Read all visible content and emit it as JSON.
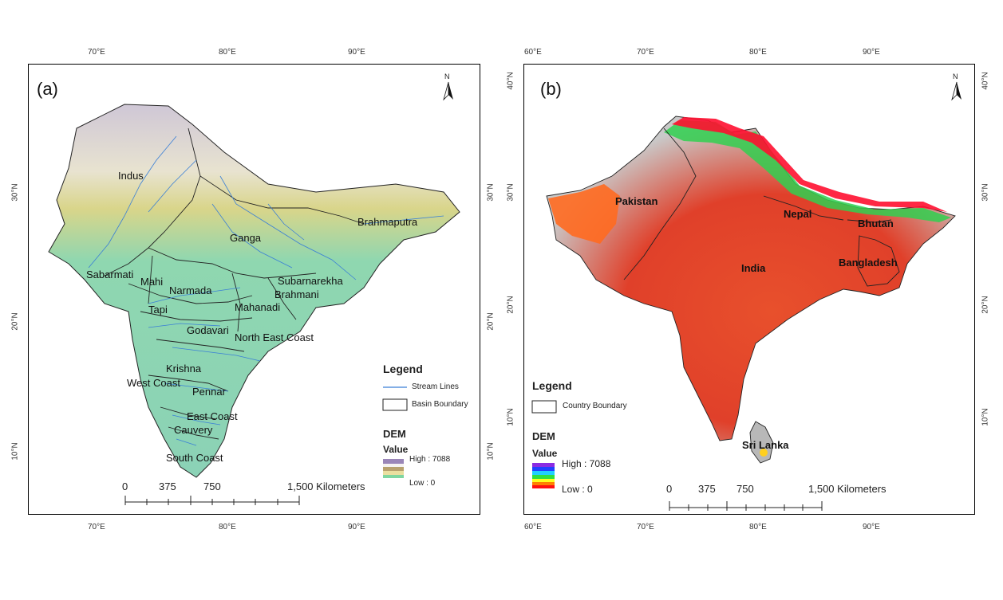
{
  "panel_a": {
    "label": "(a)",
    "north": "N",
    "top_ticks": [
      "70°E",
      "80°E",
      "90°E"
    ],
    "bottom_ticks": [
      "70°E",
      "80°E",
      "90°E"
    ],
    "left_ticks": [
      "30°N",
      "20°N",
      "10°N"
    ],
    "right_ticks": [
      "30°N",
      "20°N",
      "10°N"
    ],
    "basins": [
      "Indus",
      "Brahmaputra",
      "Ganga",
      "Sabarmati",
      "Mahi",
      "Narmada",
      "Subarnarekha",
      "Brahmani",
      "Tapi",
      "Mahanadi",
      "Godavari",
      "North East Coast",
      "Krishna",
      "West Coast",
      "Pennar",
      "East Coast",
      "Cauvery",
      "South Coast"
    ],
    "legend": {
      "title": "Legend",
      "items": [
        "Stream Lines",
        "Basin Boundary"
      ],
      "dem_title": "DEM",
      "value_title": "Value",
      "high": "High : 7088",
      "low": "Low : 0",
      "colors": [
        "#9a86b8",
        "#f5f2f0",
        "#b8a26e",
        "#eadfa0",
        "#7fd6a0"
      ]
    },
    "scale": {
      "ticks": [
        "0",
        "375",
        "750",
        "1,500 Kilometers"
      ]
    },
    "colors": {
      "stream": "#3a7fd6",
      "boundary": "#222222",
      "land": "#86d3b4"
    }
  },
  "panel_b": {
    "label": "(b)",
    "north": "N",
    "top_ticks": [
      "60°E",
      "70°E",
      "80°E",
      "90°E"
    ],
    "bottom_ticks": [
      "60°E",
      "70°E",
      "80°E",
      "90°E"
    ],
    "left_ticks": [
      "40°N",
      "30°N",
      "20°N",
      "10°N"
    ],
    "right_ticks": [
      "40°N",
      "30°N",
      "20°N",
      "10°N"
    ],
    "countries": [
      "Pakistan",
      "Nepal",
      "Bhutan",
      "India",
      "Bangladesh",
      "Sri Lanka"
    ],
    "legend": {
      "title": "Legend",
      "items": [
        "Country Boundary"
      ],
      "dem_title": "DEM",
      "value_title": "Value",
      "high": "High : 7088",
      "low": "Low : 0",
      "colors": [
        "#8a2be2",
        "#2040ff",
        "#20d0ff",
        "#30e040",
        "#ffff20",
        "#ff8000",
        "#ff1010"
      ]
    },
    "scale": {
      "ticks": [
        "0",
        "375",
        "750",
        "1,500 Kilometers"
      ]
    },
    "colors": {
      "land": "#e04a30",
      "lowland": "#b3b3b3",
      "boundary": "#222222"
    }
  }
}
